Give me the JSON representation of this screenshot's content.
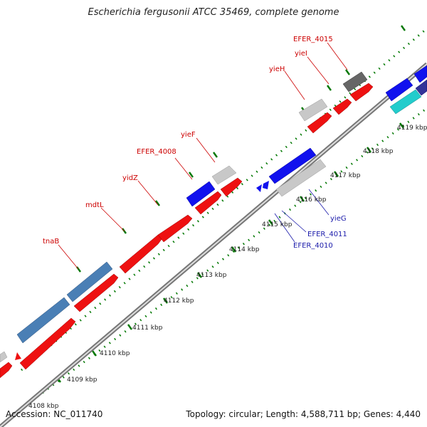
{
  "title": "Escherichia fergusonii ATCC 35469, complete genome",
  "footer": {
    "accession": "Accession: NC_011740",
    "summary": "Topology: circular; Length: 4,588,711 bp; Genes: 4,440"
  },
  "kbp_labels": [
    "4108 kbp",
    "4109 kbp",
    "4110 kbp",
    "4111 kbp",
    "4112 kbp",
    "4113 kbp",
    "4114 kbp",
    "4115 kbp",
    "4116 kbp",
    "4117 kbp",
    "4118 kbp",
    "4119 kbp"
  ],
  "gene_labels_forward": [
    "tnaB",
    "mdtL",
    "yidZ",
    "EFER_4008",
    "yieF",
    "yieH",
    "yieI",
    "EFER_4015"
  ],
  "gene_labels_reverse": [
    "yieG",
    "EFER_4011",
    "EFER_4010"
  ],
  "colors": {
    "forward_cds": "#ee1111",
    "reverse_cds": "#1111ee",
    "other_gene": "#4a7fb5",
    "pseudo_gene": "#c8c8c8",
    "rna_gene": "#22cccc",
    "backbone": "#888888",
    "tick": "#007700"
  }
}
